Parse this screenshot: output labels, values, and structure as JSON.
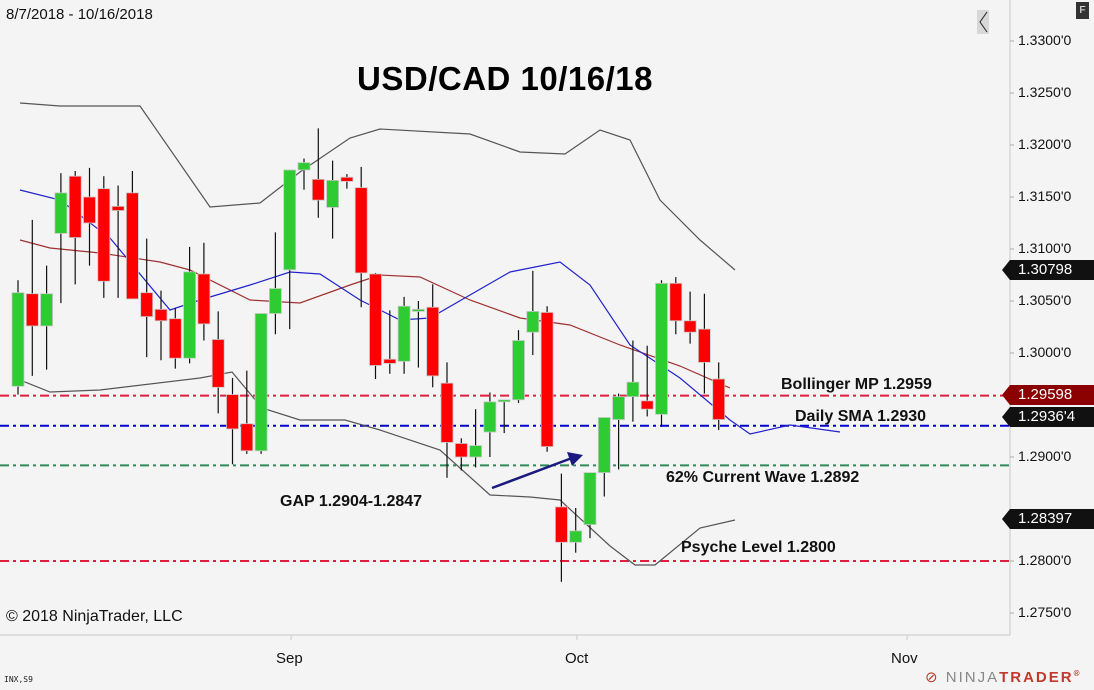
{
  "header": {
    "date_range": "8/7/2018 - 10/16/2018",
    "title": "USD/CAD 10/16/18"
  },
  "footer": {
    "copyright": "© 2018 NinjaTrader, LLC",
    "instrument_tag": "INX,S9",
    "brand_a": "NINJA",
    "brand_b": "TRADER",
    "brand_mark": "®"
  },
  "controls": {
    "collapse_icon": "‹",
    "f_button": "F"
  },
  "annotations": {
    "bollinger": "Bollinger MP 1.2959",
    "sma": "Daily SMA 1.2930",
    "wave": "62% Current Wave 1.2892",
    "gap": "GAP 1.2904-1.2847",
    "psyche": "Psyche Level 1.2800"
  },
  "y_axis": {
    "labels": [
      "1.3300'0",
      "1.3250'0",
      "1.3200'0",
      "1.3150'0",
      "1.3100'0",
      "1.3050'0",
      "1.3000'0",
      "1.2900'0",
      "1.2800'0",
      "1.2750'0"
    ]
  },
  "x_axis": {
    "labels": [
      "Sep",
      "Oct",
      "Nov"
    ]
  },
  "price_tags": [
    {
      "label": "1.30798",
      "color": "#111111"
    },
    {
      "label": "1.29598",
      "color": "#8b0000"
    },
    {
      "label": "1.2936'4",
      "color": "#111111"
    },
    {
      "label": "1.28397",
      "color": "#111111"
    }
  ],
  "colors": {
    "up": "#2ecc32",
    "down": "#ff0000",
    "sma": "#2222cc",
    "midband": "#a03030",
    "bands": "#555555",
    "bollinger_line": "#e0203a",
    "sma_line": "#0000cc",
    "wave_line": "#2e8b57",
    "psyche_line": "#e0203a",
    "arrow": "#1a1a80"
  },
  "chart_data": {
    "type": "candlestick",
    "title": "USD/CAD 10/16/18",
    "xlabel": "",
    "ylabel": "",
    "ylim": [
      1.2735,
      1.3335
    ],
    "x_ticks": [
      "Sep",
      "Oct",
      "Nov"
    ],
    "candles": [
      {
        "o": 1.2968,
        "h": 1.307,
        "l": 1.296,
        "c": 1.3058
      },
      {
        "o": 1.3057,
        "h": 1.3128,
        "l": 1.2978,
        "c": 1.3026
      },
      {
        "o": 1.3026,
        "h": 1.3084,
        "l": 1.2984,
        "c": 1.3057
      },
      {
        "o": 1.3115,
        "h": 1.3173,
        "l": 1.3048,
        "c": 1.3154
      },
      {
        "o": 1.317,
        "h": 1.3175,
        "l": 1.3066,
        "c": 1.3111
      },
      {
        "o": 1.315,
        "h": 1.3178,
        "l": 1.3084,
        "c": 1.3125
      },
      {
        "o": 1.3158,
        "h": 1.317,
        "l": 1.3053,
        "c": 1.3069
      },
      {
        "o": 1.3141,
        "h": 1.3161,
        "l": 1.3053,
        "c": 1.3137
      },
      {
        "o": 1.3154,
        "h": 1.3175,
        "l": 1.3054,
        "c": 1.3052
      },
      {
        "o": 1.3058,
        "h": 1.311,
        "l": 1.2996,
        "c": 1.3035
      },
      {
        "o": 1.3042,
        "h": 1.306,
        "l": 1.2993,
        "c": 1.3031
      },
      {
        "o": 1.3033,
        "h": 1.3043,
        "l": 1.2985,
        "c": 1.2995
      },
      {
        "o": 1.2995,
        "h": 1.3102,
        "l": 1.299,
        "c": 1.3078
      },
      {
        "o": 1.3076,
        "h": 1.3106,
        "l": 1.3012,
        "c": 1.3028
      },
      {
        "o": 1.3013,
        "h": 1.304,
        "l": 1.2942,
        "c": 1.2967
      },
      {
        "o": 1.296,
        "h": 1.2976,
        "l": 1.2893,
        "c": 1.2927
      },
      {
        "o": 1.2932,
        "h": 1.2983,
        "l": 1.2903,
        "c": 1.2906
      },
      {
        "o": 1.2906,
        "h": 1.2981,
        "l": 1.2903,
        "c": 1.3038
      },
      {
        "o": 1.3038,
        "h": 1.3116,
        "l": 1.3018,
        "c": 1.3062
      },
      {
        "o": 1.308,
        "h": 1.3152,
        "l": 1.3023,
        "c": 1.3176
      },
      {
        "o": 1.3176,
        "h": 1.3187,
        "l": 1.3157,
        "c": 1.3183
      },
      {
        "o": 1.3167,
        "h": 1.3216,
        "l": 1.313,
        "c": 1.3147
      },
      {
        "o": 1.314,
        "h": 1.3185,
        "l": 1.311,
        "c": 1.3166
      },
      {
        "o": 1.3169,
        "h": 1.3172,
        "l": 1.3158,
        "c": 1.3165
      },
      {
        "o": 1.3159,
        "h": 1.3179,
        "l": 1.3044,
        "c": 1.3077
      },
      {
        "o": 1.3076,
        "h": 1.3077,
        "l": 1.2975,
        "c": 1.2988
      },
      {
        "o": 1.2994,
        "h": 1.3041,
        "l": 1.298,
        "c": 1.299
      },
      {
        "o": 1.2992,
        "h": 1.3054,
        "l": 1.298,
        "c": 1.3045
      },
      {
        "o": 1.304,
        "h": 1.305,
        "l": 1.2986,
        "c": 1.3042
      },
      {
        "o": 1.3044,
        "h": 1.3066,
        "l": 1.2967,
        "c": 1.2978
      },
      {
        "o": 1.2971,
        "h": 1.2991,
        "l": 1.288,
        "c": 1.2914
      },
      {
        "o": 1.2913,
        "h": 1.2918,
        "l": 1.2887,
        "c": 1.29
      },
      {
        "o": 1.29,
        "h": 1.2946,
        "l": 1.289,
        "c": 1.2911
      },
      {
        "o": 1.2924,
        "h": 1.2962,
        "l": 1.29,
        "c": 1.2953
      },
      {
        "o": 1.2955,
        "h": 1.2955,
        "l": 1.2923,
        "c": 1.2955
      },
      {
        "o": 1.2955,
        "h": 1.3022,
        "l": 1.2952,
        "c": 1.3012
      },
      {
        "o": 1.302,
        "h": 1.3079,
        "l": 1.2998,
        "c": 1.304
      },
      {
        "o": 1.3039,
        "h": 1.3045,
        "l": 1.2905,
        "c": 1.291
      },
      {
        "o": 1.2852,
        "h": 1.2884,
        "l": 1.278,
        "c": 1.2818
      },
      {
        "o": 1.2818,
        "h": 1.2851,
        "l": 1.2808,
        "c": 1.2829
      },
      {
        "o": 1.2835,
        "h": 1.2873,
        "l": 1.2822,
        "c": 1.2885
      },
      {
        "o": 1.2885,
        "h": 1.2925,
        "l": 1.2862,
        "c": 1.2938
      },
      {
        "o": 1.2936,
        "h": 1.2961,
        "l": 1.2888,
        "c": 1.2958
      },
      {
        "o": 1.2958,
        "h": 1.3012,
        "l": 1.2934,
        "c": 1.2972
      },
      {
        "o": 1.2954,
        "h": 1.3007,
        "l": 1.2939,
        "c": 1.2946
      },
      {
        "o": 1.2941,
        "h": 1.307,
        "l": 1.2929,
        "c": 1.3067
      },
      {
        "o": 1.3067,
        "h": 1.3073,
        "l": 1.3018,
        "c": 1.3031
      },
      {
        "o": 1.3031,
        "h": 1.3059,
        "l": 1.3009,
        "c": 1.302
      },
      {
        "o": 1.3023,
        "h": 1.3057,
        "l": 1.2961,
        "c": 1.2991
      },
      {
        "o": 1.2975,
        "h": 1.2991,
        "l": 1.2926,
        "c": 1.2936
      }
    ],
    "horizontal_lines": [
      {
        "label": "Bollinger MP 1.2959",
        "value": 1.2959
      },
      {
        "label": "Daily SMA 1.2930",
        "value": 1.293
      },
      {
        "label": "62% Current Wave 1.2892",
        "value": 1.2892
      },
      {
        "label": "Psyche Level 1.2800",
        "value": 1.28
      }
    ],
    "indicator_tags": [
      1.30798,
      1.29598,
      1.29364,
      1.28397
    ]
  }
}
